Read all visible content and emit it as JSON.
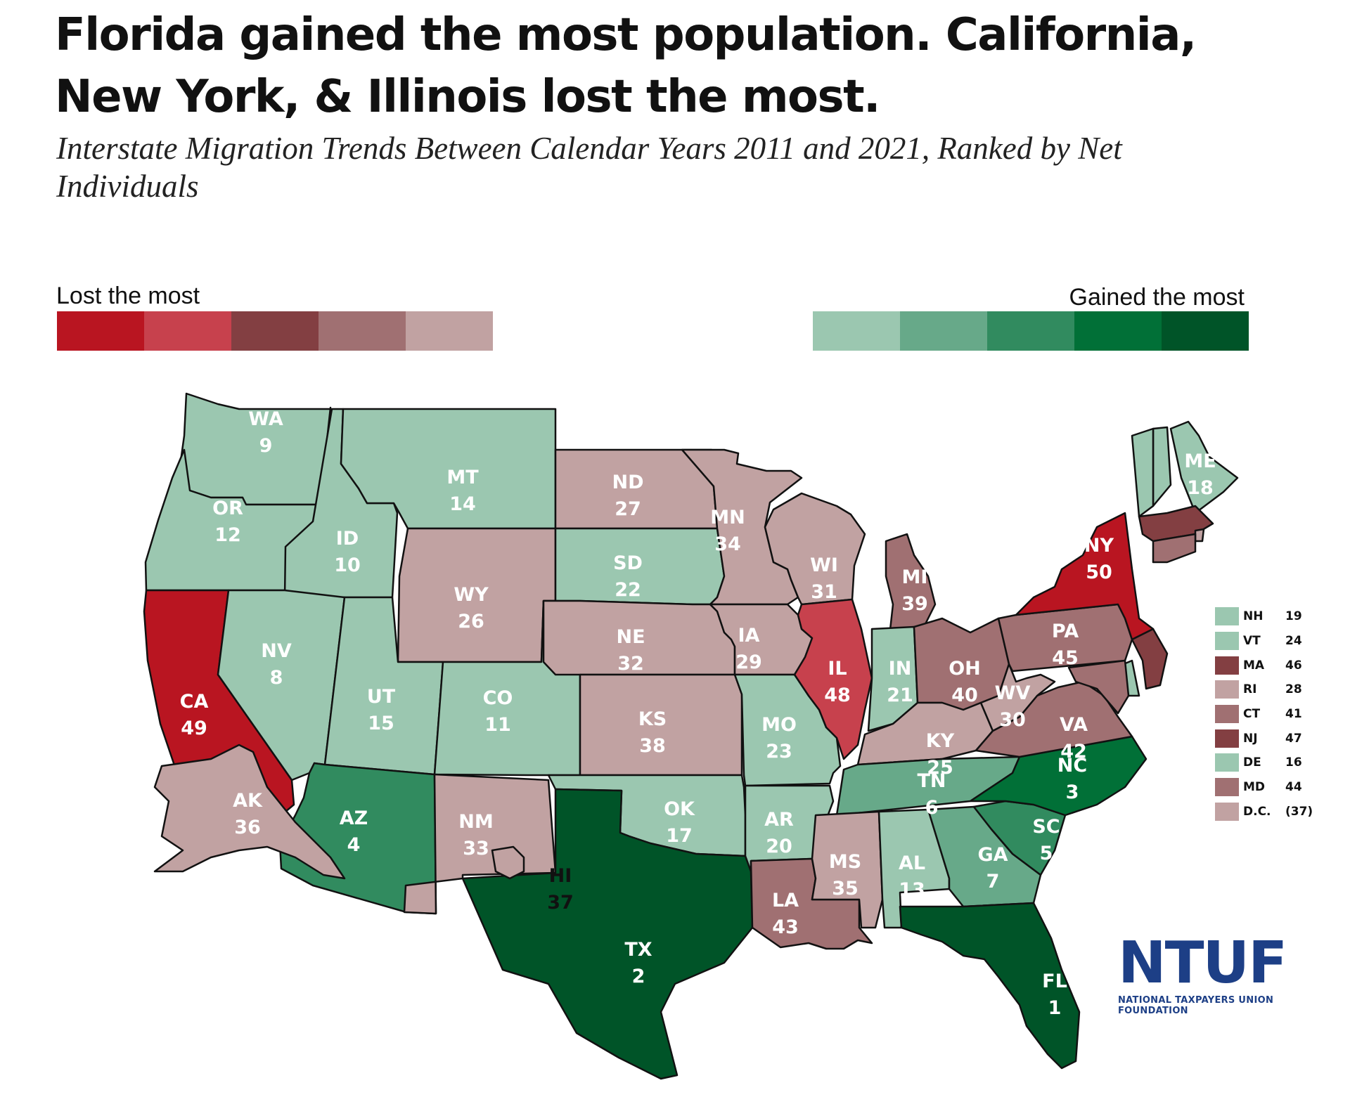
{
  "title": "Florida gained the most population. California, New York, & Illinois lost the most.",
  "subtitle": "Interstate Migration Trends Between Calendar Years 2011 and 2021, Ranked by Net Individuals",
  "legend": {
    "lost_label": "Lost the most",
    "gained_label": "Gained the most",
    "lost_colors": [
      "#b91521",
      "#c7414d",
      "#833f42",
      "#a07072",
      "#c1a2a2"
    ],
    "gained_colors": [
      "#9bc7b0",
      "#67a989",
      "#318b5f",
      "#017037",
      "#005428"
    ]
  },
  "colors": {
    "red1": "#b91521",
    "red2": "#c7414d",
    "red3": "#833f42",
    "red4": "#a07072",
    "red5": "#c1a2a2",
    "green1": "#9bc7b0",
    "green2": "#67a989",
    "green3": "#318b5f",
    "green4": "#017037",
    "green5": "#005428"
  },
  "states": [
    {
      "abbr": "WA",
      "rank": "9",
      "color": "green1"
    },
    {
      "abbr": "OR",
      "rank": "12",
      "color": "green1"
    },
    {
      "abbr": "CA",
      "rank": "49",
      "color": "red1"
    },
    {
      "abbr": "ID",
      "rank": "10",
      "color": "green1"
    },
    {
      "abbr": "NV",
      "rank": "8",
      "color": "green1"
    },
    {
      "abbr": "MT",
      "rank": "14",
      "color": "green1"
    },
    {
      "abbr": "WY",
      "rank": "26",
      "color": "red5"
    },
    {
      "abbr": "UT",
      "rank": "15",
      "color": "green1"
    },
    {
      "abbr": "AZ",
      "rank": "4",
      "color": "green3"
    },
    {
      "abbr": "CO",
      "rank": "11",
      "color": "green1"
    },
    {
      "abbr": "NM",
      "rank": "33",
      "color": "red5"
    },
    {
      "abbr": "ND",
      "rank": "27",
      "color": "red5"
    },
    {
      "abbr": "SD",
      "rank": "22",
      "color": "green1"
    },
    {
      "abbr": "NE",
      "rank": "32",
      "color": "red5"
    },
    {
      "abbr": "KS",
      "rank": "38",
      "color": "red5"
    },
    {
      "abbr": "OK",
      "rank": "17",
      "color": "green1"
    },
    {
      "abbr": "TX",
      "rank": "2",
      "color": "green5"
    },
    {
      "abbr": "MN",
      "rank": "34",
      "color": "red5"
    },
    {
      "abbr": "IA",
      "rank": "29",
      "color": "red5"
    },
    {
      "abbr": "MO",
      "rank": "23",
      "color": "green1"
    },
    {
      "abbr": "AR",
      "rank": "20",
      "color": "green1"
    },
    {
      "abbr": "LA",
      "rank": "43",
      "color": "red4"
    },
    {
      "abbr": "WI",
      "rank": "31",
      "color": "red5"
    },
    {
      "abbr": "IL",
      "rank": "48",
      "color": "red2"
    },
    {
      "abbr": "MI",
      "rank": "39",
      "color": "red4"
    },
    {
      "abbr": "IN",
      "rank": "21",
      "color": "green1"
    },
    {
      "abbr": "OH",
      "rank": "40",
      "color": "red4"
    },
    {
      "abbr": "KY",
      "rank": "25",
      "color": "red5"
    },
    {
      "abbr": "TN",
      "rank": "6",
      "color": "green2"
    },
    {
      "abbr": "MS",
      "rank": "35",
      "color": "red5"
    },
    {
      "abbr": "AL",
      "rank": "13",
      "color": "green1"
    },
    {
      "abbr": "GA",
      "rank": "7",
      "color": "green2"
    },
    {
      "abbr": "FL",
      "rank": "1",
      "color": "green5"
    },
    {
      "abbr": "SC",
      "rank": "5",
      "color": "green3"
    },
    {
      "abbr": "NC",
      "rank": "3",
      "color": "green4"
    },
    {
      "abbr": "VA",
      "rank": "42",
      "color": "red4"
    },
    {
      "abbr": "WV",
      "rank": "30",
      "color": "red5"
    },
    {
      "abbr": "PA",
      "rank": "45",
      "color": "red4"
    },
    {
      "abbr": "NY",
      "rank": "50",
      "color": "red1"
    },
    {
      "abbr": "ME",
      "rank": "18",
      "color": "green1"
    },
    {
      "abbr": "AK",
      "rank": "36",
      "color": "red5"
    },
    {
      "abbr": "HI",
      "rank": "37",
      "color": "red5"
    }
  ],
  "small_states": [
    {
      "abbr": "NH",
      "rank": "19",
      "color": "green1"
    },
    {
      "abbr": "VT",
      "rank": "24",
      "color": "green1"
    },
    {
      "abbr": "MA",
      "rank": "46",
      "color": "red3"
    },
    {
      "abbr": "RI",
      "rank": "28",
      "color": "red5"
    },
    {
      "abbr": "CT",
      "rank": "41",
      "color": "red4"
    },
    {
      "abbr": "NJ",
      "rank": "47",
      "color": "red3"
    },
    {
      "abbr": "DE",
      "rank": "16",
      "color": "green1"
    },
    {
      "abbr": "MD",
      "rank": "44",
      "color": "red4"
    },
    {
      "abbr": "D.C.",
      "rank": "(37)",
      "color": "red5"
    }
  ],
  "logo": {
    "mark": "NTUF",
    "text": "NATIONAL TAXPAYERS UNION FOUNDATION"
  }
}
